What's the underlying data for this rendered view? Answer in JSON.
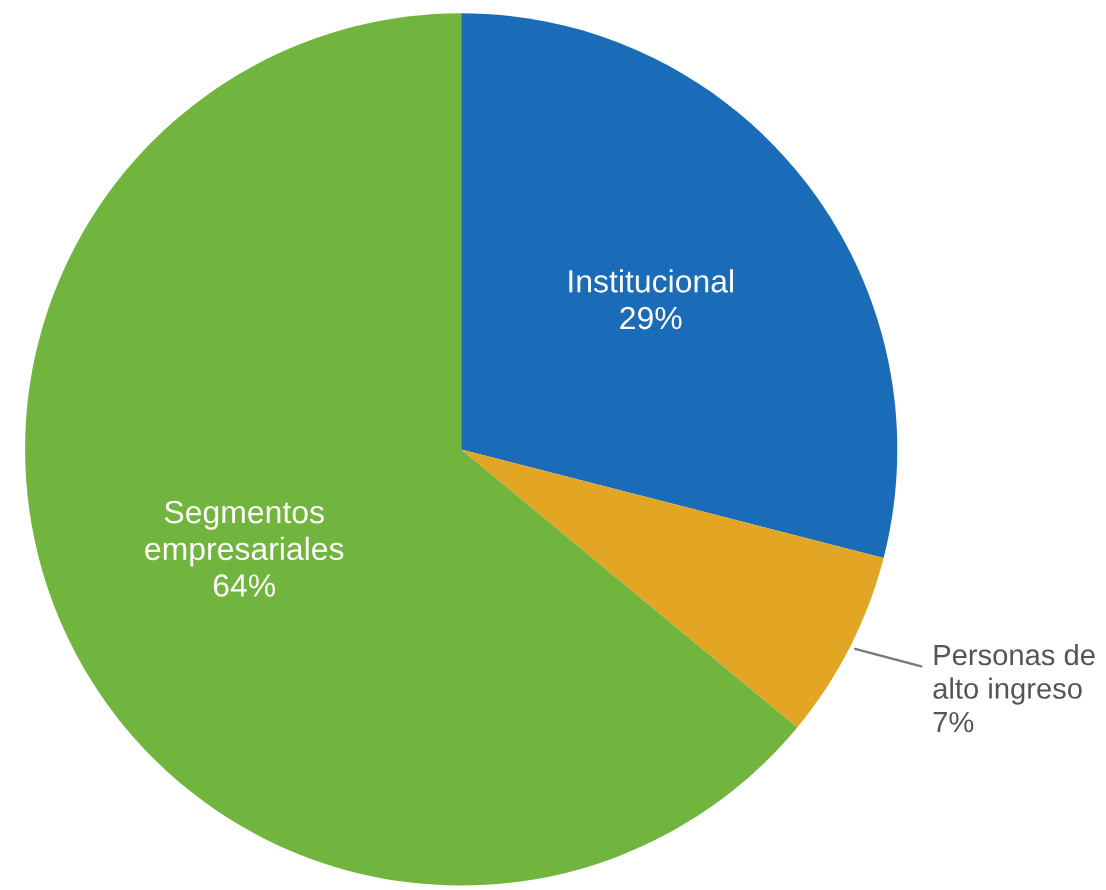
{
  "chart_data": {
    "type": "pie",
    "categories": [
      "Institucional",
      "Personas de\nalto ingreso",
      "Segmentos\nempresariales"
    ],
    "values": [
      29,
      7,
      64
    ],
    "colors": [
      "#1b6cb8",
      "#e2a624",
      "#72b53e"
    ],
    "value_labels": [
      "29%",
      "7%",
      "64%"
    ],
    "legend": false
  }
}
